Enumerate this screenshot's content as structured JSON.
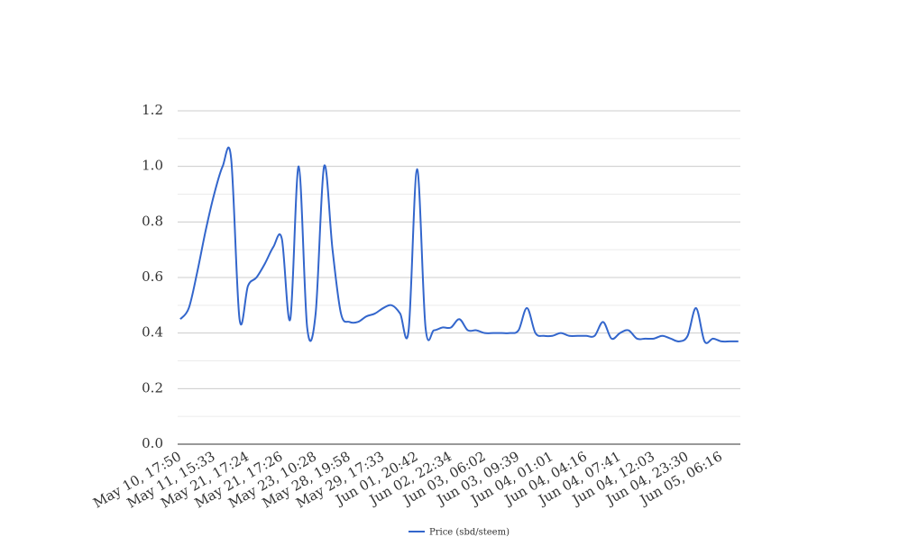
{
  "chart_data": {
    "type": "line",
    "categories": [
      "May 10, 17:50",
      null,
      null,
      null,
      "May 11, 15:33",
      null,
      null,
      null,
      "May 21, 17:24",
      null,
      null,
      null,
      "May 21, 17:26",
      null,
      null,
      null,
      "May 23, 10:28",
      null,
      null,
      null,
      "May 28, 19:58",
      null,
      null,
      null,
      "May 29, 17:33",
      null,
      null,
      null,
      "Jun 01, 20:42",
      null,
      null,
      null,
      "Jun 02, 22:34",
      null,
      null,
      null,
      "Jun 03, 06:02",
      null,
      null,
      null,
      "Jun 03, 09:39",
      null,
      null,
      null,
      "Jun 04, 01:01",
      null,
      null,
      null,
      "Jun 04, 04:16",
      null,
      null,
      null,
      "Jun 04, 07:41",
      null,
      null,
      null,
      "Jun 04, 12:03",
      null,
      null,
      null,
      "Jun 04, 23:30",
      null,
      null,
      null,
      "Jun 05, 06:16",
      null,
      null
    ],
    "series": [
      {
        "name": "Price (sbd/steem)",
        "color": "#3366cc",
        "values": [
          0.45,
          0.49,
          0.62,
          0.77,
          0.9,
          1.0,
          1.03,
          0.45,
          0.57,
          0.6,
          0.65,
          0.71,
          0.74,
          0.45,
          1.0,
          0.42,
          0.47,
          1.0,
          0.7,
          0.47,
          0.44,
          0.44,
          0.46,
          0.47,
          0.49,
          0.5,
          0.47,
          0.41,
          0.99,
          0.42,
          0.41,
          0.42,
          0.42,
          0.45,
          0.41,
          0.41,
          0.4,
          0.4,
          0.4,
          0.4,
          0.41,
          0.49,
          0.4,
          0.39,
          0.39,
          0.4,
          0.39,
          0.39,
          0.39,
          0.39,
          0.44,
          0.38,
          0.4,
          0.41,
          0.38,
          0.38,
          0.38,
          0.39,
          0.38,
          0.37,
          0.39,
          0.49,
          0.37,
          0.38,
          0.37,
          0.37,
          0.37
        ]
      }
    ],
    "ylim": [
      0,
      1.2
    ],
    "yticks": [
      {
        "value": 0,
        "label": "0.0"
      },
      0.2,
      0.4,
      0.6,
      0.8,
      {
        "value": 1,
        "label": "1.0"
      },
      1.2
    ],
    "minor_yticks": [
      0.1,
      0.3,
      0.5,
      0.7,
      0.9,
      1.1
    ],
    "grid": true,
    "legend": "bottom"
  }
}
